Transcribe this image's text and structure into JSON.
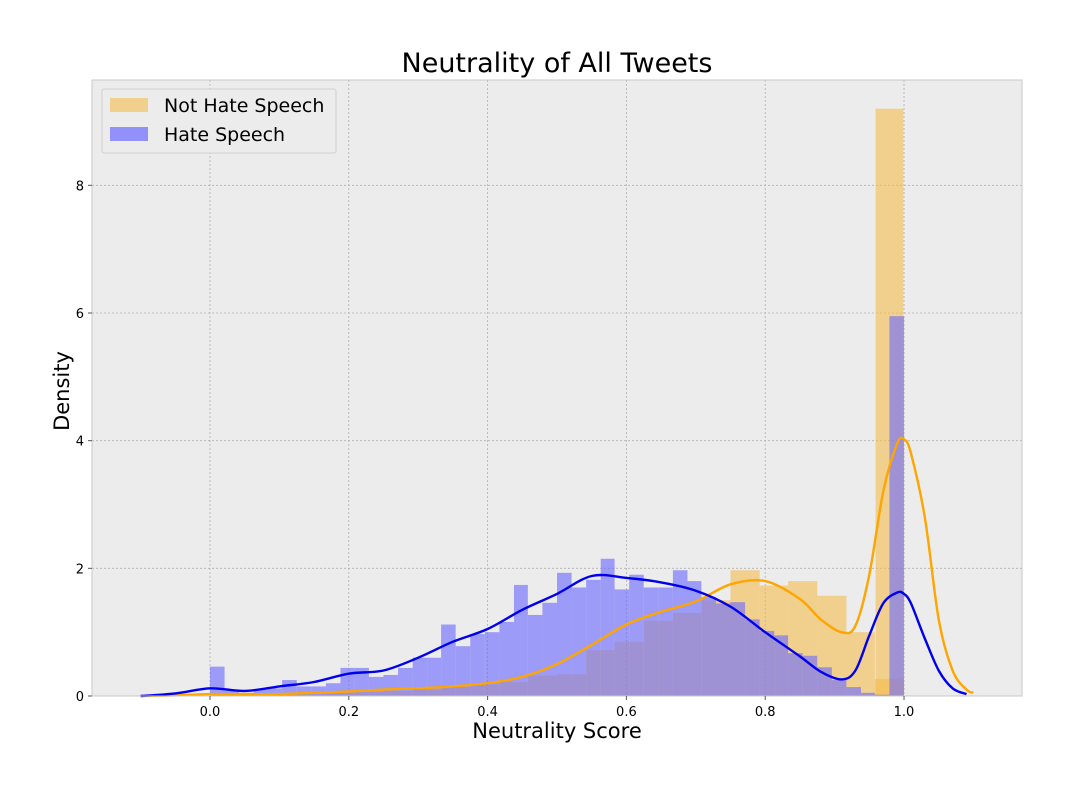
{
  "chart_data": {
    "type": "bar",
    "title": "Neutrality of All Tweets",
    "xlabel": "Neutrality Score",
    "ylabel": "Density",
    "xlim": [
      -0.17,
      1.17
    ],
    "ylim": [
      0,
      9.65
    ],
    "xticks": [
      0.0,
      0.2,
      0.4,
      0.6,
      0.8,
      1.0
    ],
    "xtick_labels": [
      "0.0",
      "0.2",
      "0.4",
      "0.6",
      "0.8",
      "1.0"
    ],
    "yticks": [
      0,
      2,
      4,
      6,
      8
    ],
    "ytick_labels": [
      "0",
      "2",
      "4",
      "6",
      "8"
    ],
    "grid": true,
    "legend": {
      "position": "top-left",
      "entries": [
        "Not Hate Speech",
        "Hate Speech"
      ]
    },
    "colors": {
      "not_hate_fill": "#f5b942",
      "not_hate_line": "#ffa500",
      "hate_fill": "#6b6bff",
      "hate_line": "#0000ee",
      "plot_bg": "#ececec",
      "grid": "#b0b0b0"
    },
    "series": [
      {
        "name": "Not Hate Speech",
        "kind": "histogram",
        "bin_edges": [
          0.0,
          0.042,
          0.083,
          0.125,
          0.167,
          0.208,
          0.25,
          0.292,
          0.333,
          0.375,
          0.417,
          0.458,
          0.5,
          0.542,
          0.583,
          0.625,
          0.667,
          0.708,
          0.75,
          0.792,
          0.833,
          0.875,
          0.917,
          0.958,
          1.0
        ],
        "values": [
          0.05,
          0.03,
          0.04,
          0.04,
          0.05,
          0.06,
          0.08,
          0.1,
          0.14,
          0.18,
          0.22,
          0.32,
          0.34,
          0.72,
          0.85,
          1.18,
          1.3,
          1.5,
          1.97,
          1.73,
          1.8,
          1.57,
          1.0,
          0.27
        ],
        "extra_bins": [
          {
            "x0": 0.959,
            "x1": 0.999,
            "value": 9.2
          }
        ]
      },
      {
        "name": "Hate Speech",
        "kind": "histogram",
        "bin_edges": [
          0.0,
          0.021,
          0.042,
          0.063,
          0.083,
          0.104,
          0.125,
          0.146,
          0.167,
          0.188,
          0.208,
          0.229,
          0.25,
          0.271,
          0.292,
          0.313,
          0.333,
          0.354,
          0.375,
          0.396,
          0.417,
          0.438,
          0.458,
          0.479,
          0.5,
          0.521,
          0.542,
          0.563,
          0.583,
          0.604,
          0.625,
          0.646,
          0.667,
          0.688,
          0.708,
          0.729,
          0.75,
          0.771,
          0.792,
          0.813,
          0.833,
          0.854,
          0.875,
          0.896,
          0.917,
          0.938,
          0.958,
          0.979,
          1.0
        ],
        "values": [
          0.46,
          0.1,
          0.05,
          0.1,
          0.12,
          0.25,
          0.15,
          0.15,
          0.2,
          0.44,
          0.44,
          0.3,
          0.33,
          0.44,
          0.6,
          0.6,
          1.12,
          0.78,
          0.97,
          1.0,
          1.16,
          1.74,
          1.27,
          1.46,
          1.93,
          1.7,
          1.82,
          2.15,
          1.67,
          1.9,
          1.7,
          1.7,
          1.97,
          1.8,
          1.55,
          1.45,
          1.47,
          1.2,
          1.02,
          0.95,
          0.67,
          0.63,
          0.45,
          0.25,
          0.14,
          0.05,
          0.02,
          5.95
        ]
      },
      {
        "name": "Not Hate Speech",
        "kind": "kde",
        "x": [
          -0.1,
          -0.05,
          0.0,
          0.05,
          0.1,
          0.15,
          0.2,
          0.25,
          0.3,
          0.35,
          0.4,
          0.45,
          0.5,
          0.55,
          0.6,
          0.65,
          0.7,
          0.75,
          0.8,
          0.85,
          0.88,
          0.91,
          0.93,
          0.95,
          0.97,
          0.99,
          1.0,
          1.01,
          1.03,
          1.05,
          1.07,
          1.09,
          1.1
        ],
        "y": [
          0.0,
          0.01,
          0.03,
          0.03,
          0.03,
          0.05,
          0.07,
          0.1,
          0.12,
          0.15,
          0.2,
          0.3,
          0.5,
          0.8,
          1.12,
          1.32,
          1.48,
          1.75,
          1.8,
          1.52,
          1.2,
          1.0,
          1.1,
          1.9,
          3.2,
          3.95,
          4.02,
          3.8,
          2.8,
          1.2,
          0.4,
          0.1,
          0.05
        ]
      },
      {
        "name": "Hate Speech",
        "kind": "kde",
        "x": [
          -0.1,
          -0.05,
          0.0,
          0.05,
          0.1,
          0.15,
          0.2,
          0.25,
          0.3,
          0.35,
          0.4,
          0.45,
          0.5,
          0.55,
          0.6,
          0.65,
          0.7,
          0.75,
          0.8,
          0.85,
          0.88,
          0.91,
          0.93,
          0.95,
          0.97,
          0.99,
          1.0,
          1.01,
          1.03,
          1.05,
          1.07,
          1.09
        ],
        "y": [
          0.0,
          0.04,
          0.12,
          0.08,
          0.15,
          0.22,
          0.35,
          0.4,
          0.6,
          0.85,
          1.05,
          1.35,
          1.6,
          1.88,
          1.85,
          1.78,
          1.65,
          1.4,
          1.0,
          0.62,
          0.38,
          0.26,
          0.4,
          0.95,
          1.45,
          1.62,
          1.6,
          1.45,
          0.9,
          0.4,
          0.12,
          0.03
        ]
      }
    ]
  }
}
